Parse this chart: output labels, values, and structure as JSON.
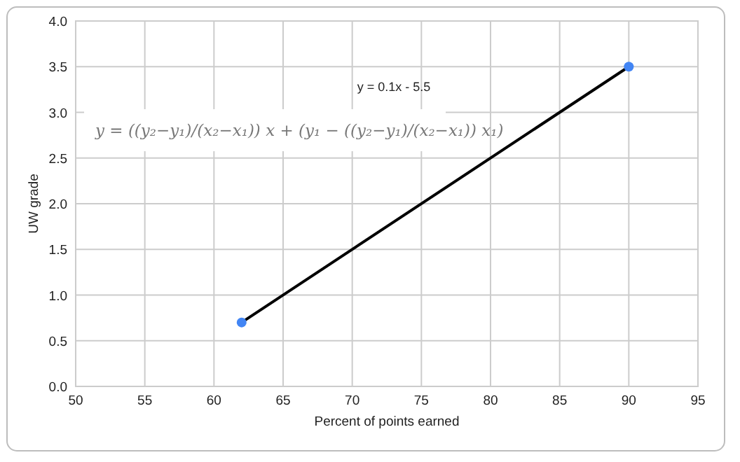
{
  "chart_data": {
    "type": "scatter",
    "x": [
      62,
      90
    ],
    "series": [
      {
        "type": "line",
        "values": [
          0.7,
          3.5
        ],
        "color": "#000000",
        "marker": "none"
      },
      {
        "values": [
          0.7,
          3.5
        ],
        "color": "#4285f4",
        "marker": "circle"
      }
    ],
    "xlabel": "Percent of points earned",
    "ylabel": "UW grade",
    "xlim": [
      50,
      95
    ],
    "xticks": [
      50,
      55,
      60,
      65,
      70,
      75,
      80,
      85,
      90,
      95
    ],
    "ylim": [
      0,
      4
    ],
    "yticks": [
      {
        "value": 0,
        "label": "0.0"
      },
      {
        "value": 0.5,
        "label": "0.5"
      },
      {
        "value": 1,
        "label": "1.0"
      },
      {
        "value": 1.5,
        "label": "1.5"
      },
      {
        "value": 2,
        "label": "2.0"
      },
      {
        "value": 2.5,
        "label": "2.5"
      },
      {
        "value": 3,
        "label": "3.0"
      },
      {
        "value": 3.5,
        "label": "3.5"
      },
      {
        "value": 4,
        "label": "4.0"
      }
    ],
    "grid": true,
    "annotations": [
      "y = 0.1x - 5.5",
      "y = ((y₂−y₁)/(x₂−x₁)) x + (y₁ − ((y₂−y₁)/(x₂−x₁)) x₁)"
    ]
  }
}
